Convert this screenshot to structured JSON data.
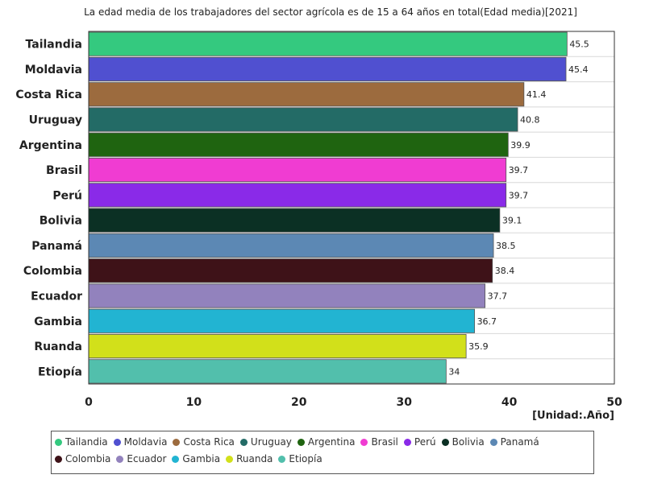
{
  "chart_data": {
    "type": "bar",
    "orientation": "horizontal",
    "title": "La edad media de los trabajadores del sector agrícola es de 15 a 64 años en total(Edad media)[2021]",
    "unit_label": "[Unidad:.Año]",
    "categories": [
      "Tailandia",
      "Moldavia",
      "Costa Rica",
      "Uruguay",
      "Argentina",
      "Brasil",
      "Perú",
      "Bolivia",
      "Panamá",
      "Colombia",
      "Ecuador",
      "Gambia",
      "Ruanda",
      "Etiopía"
    ],
    "values": [
      45.5,
      45.4,
      41.4,
      40.8,
      39.9,
      39.7,
      39.7,
      39.1,
      38.5,
      38.4,
      37.7,
      36.7,
      35.9,
      34
    ],
    "value_labels": [
      "45.5",
      "45.4",
      "41.4",
      "40.8",
      "39.9",
      "39.7",
      "39.7",
      "39.1",
      "38.5",
      "38.4",
      "37.7",
      "36.7",
      "35.9",
      "34"
    ],
    "colors": [
      "#34c97f",
      "#5050d0",
      "#9c6b3e",
      "#236b66",
      "#1f6410",
      "#f03cd2",
      "#8a2ae8",
      "#0b3024",
      "#5c88b4",
      "#3e1218",
      "#9282bd",
      "#22b4d2",
      "#d2e01a",
      "#52bfac"
    ],
    "xlim": [
      0,
      50
    ],
    "xticks": [
      "0",
      "10",
      "20",
      "30",
      "40",
      "50"
    ],
    "grid": true,
    "legend_position": "bottom"
  }
}
